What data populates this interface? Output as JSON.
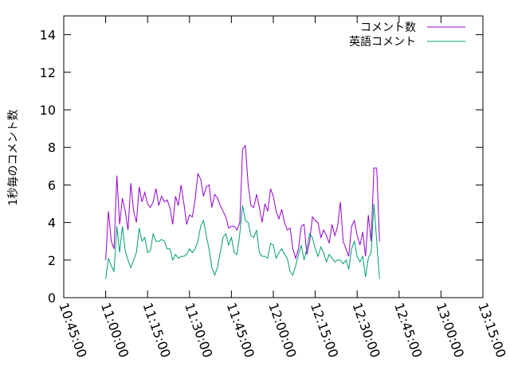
{
  "chart_data": {
    "type": "line",
    "ylabel": "1秒毎のコメント数",
    "ylim": [
      0,
      15
    ],
    "yticks": [
      0,
      2,
      4,
      6,
      8,
      10,
      12,
      14
    ],
    "ytick_labels": [
      "0",
      "2",
      "4",
      "6",
      "8",
      "10",
      "12",
      "14"
    ],
    "xlim": [
      "10:45:00",
      "13:15:00"
    ],
    "xticks": [
      "10:45:00",
      "11:00:00",
      "11:15:00",
      "11:30:00",
      "11:45:00",
      "12:00:00",
      "12:15:00",
      "12:30:00",
      "12:45:00",
      "13:00:00",
      "13:15:00"
    ],
    "legend_position": "top-right",
    "grid": false,
    "series": [
      {
        "name": "コメント数",
        "color": "#9400d3",
        "points": [
          [
            "11:00:00",
            2.0
          ],
          [
            "11:01:00",
            4.6
          ],
          [
            "11:02:00",
            3.0
          ],
          [
            "11:03:00",
            2.6
          ],
          [
            "11:04:00",
            6.5
          ],
          [
            "11:05:00",
            3.9
          ],
          [
            "11:06:00",
            5.3
          ],
          [
            "11:07:00",
            4.6
          ],
          [
            "11:08:00",
            3.6
          ],
          [
            "11:09:00",
            6.1
          ],
          [
            "11:10:00",
            4.6
          ],
          [
            "11:11:00",
            4.0
          ],
          [
            "11:12:00",
            5.9
          ],
          [
            "11:13:00",
            5.1
          ],
          [
            "11:14:00",
            5.6
          ],
          [
            "11:15:00",
            5.0
          ],
          [
            "11:16:00",
            4.8
          ],
          [
            "11:17:00",
            5.1
          ],
          [
            "11:18:00",
            5.8
          ],
          [
            "11:19:00",
            4.9
          ],
          [
            "11:20:00",
            5.4
          ],
          [
            "11:21:00",
            5.1
          ],
          [
            "11:22:00",
            5.2
          ],
          [
            "11:23:00",
            4.8
          ],
          [
            "11:24:00",
            3.9
          ],
          [
            "11:25:00",
            5.4
          ],
          [
            "11:26:00",
            4.9
          ],
          [
            "11:27:00",
            6.0
          ],
          [
            "11:28:00",
            5.0
          ],
          [
            "11:29:00",
            3.9
          ],
          [
            "11:30:00",
            4.4
          ],
          [
            "11:31:00",
            4.3
          ],
          [
            "11:32:00",
            5.2
          ],
          [
            "11:33:00",
            6.6
          ],
          [
            "11:34:00",
            6.3
          ],
          [
            "11:35:00",
            5.4
          ],
          [
            "11:36:00",
            5.9
          ],
          [
            "11:37:00",
            6.0
          ],
          [
            "11:38:00",
            4.8
          ],
          [
            "11:39:00",
            5.5
          ],
          [
            "11:40:00",
            5.3
          ],
          [
            "11:41:00",
            4.9
          ],
          [
            "11:42:00",
            4.6
          ],
          [
            "11:43:00",
            4.3
          ],
          [
            "11:44:00",
            3.7
          ],
          [
            "11:45:00",
            3.8
          ],
          [
            "11:46:00",
            3.8
          ],
          [
            "11:47:00",
            3.6
          ],
          [
            "11:48:00",
            4.0
          ],
          [
            "11:49:00",
            7.9
          ],
          [
            "11:50:00",
            8.1
          ],
          [
            "11:51:00",
            6.0
          ],
          [
            "11:52:00",
            4.9
          ],
          [
            "11:53:00",
            4.8
          ],
          [
            "11:54:00",
            5.5
          ],
          [
            "11:55:00",
            4.8
          ],
          [
            "11:56:00",
            4.0
          ],
          [
            "11:57:00",
            5.0
          ],
          [
            "11:58:00",
            4.6
          ],
          [
            "11:59:00",
            5.8
          ],
          [
            "12:00:00",
            5.4
          ],
          [
            "12:01:00",
            4.6
          ],
          [
            "12:02:00",
            4.2
          ],
          [
            "12:03:00",
            4.7
          ],
          [
            "12:04:00",
            4.0
          ],
          [
            "12:05:00",
            3.6
          ],
          [
            "12:06:00",
            3.7
          ],
          [
            "12:07:00",
            2.6
          ],
          [
            "12:08:00",
            2.1
          ],
          [
            "12:09:00",
            2.6
          ],
          [
            "12:10:00",
            3.8
          ],
          [
            "12:11:00",
            3.9
          ],
          [
            "12:12:00",
            2.3
          ],
          [
            "12:13:00",
            3.0
          ],
          [
            "12:14:00",
            4.3
          ],
          [
            "12:15:00",
            4.1
          ],
          [
            "12:16:00",
            4.0
          ],
          [
            "12:17:00",
            3.2
          ],
          [
            "12:18:00",
            3.6
          ],
          [
            "12:19:00",
            3.3
          ],
          [
            "12:20:00",
            2.9
          ],
          [
            "12:21:00",
            3.9
          ],
          [
            "12:22:00",
            3.3
          ],
          [
            "12:23:00",
            3.8
          ],
          [
            "12:24:00",
            5.1
          ],
          [
            "12:25:00",
            3.0
          ],
          [
            "12:26:00",
            2.6
          ],
          [
            "12:27:00",
            2.2
          ],
          [
            "12:28:00",
            3.8
          ],
          [
            "12:29:00",
            4.1
          ],
          [
            "12:30:00",
            3.3
          ],
          [
            "12:31:00",
            2.8
          ],
          [
            "12:32:00",
            3.5
          ],
          [
            "12:33:00",
            2.2
          ],
          [
            "12:34:00",
            4.4
          ],
          [
            "12:35:00",
            3.0
          ],
          [
            "12:36:00",
            6.9
          ],
          [
            "12:37:00",
            6.9
          ],
          [
            "12:38:00",
            3.0
          ]
        ]
      },
      {
        "name": "英語コメント",
        "color": "#009e73",
        "points": [
          [
            "11:00:00",
            1.0
          ],
          [
            "11:01:00",
            2.1
          ],
          [
            "11:02:00",
            1.7
          ],
          [
            "11:03:00",
            1.4
          ],
          [
            "11:04:00",
            3.8
          ],
          [
            "11:05:00",
            2.4
          ],
          [
            "11:06:00",
            3.8
          ],
          [
            "11:07:00",
            2.5
          ],
          [
            "11:08:00",
            2.0
          ],
          [
            "11:09:00",
            1.6
          ],
          [
            "11:10:00",
            2.0
          ],
          [
            "11:11:00",
            2.4
          ],
          [
            "11:12:00",
            3.7
          ],
          [
            "11:13:00",
            3.0
          ],
          [
            "11:14:00",
            3.2
          ],
          [
            "11:15:00",
            2.4
          ],
          [
            "11:16:00",
            2.5
          ],
          [
            "11:17:00",
            3.4
          ],
          [
            "11:18:00",
            3.0
          ],
          [
            "11:19:00",
            3.0
          ],
          [
            "11:20:00",
            3.1
          ],
          [
            "11:21:00",
            3.0
          ],
          [
            "11:22:00",
            2.6
          ],
          [
            "11:23:00",
            2.6
          ],
          [
            "11:24:00",
            2.0
          ],
          [
            "11:25:00",
            2.3
          ],
          [
            "11:26:00",
            2.1
          ],
          [
            "11:27:00",
            2.2
          ],
          [
            "11:28:00",
            2.2
          ],
          [
            "11:29:00",
            2.3
          ],
          [
            "11:30:00",
            2.6
          ],
          [
            "11:31:00",
            2.4
          ],
          [
            "11:32:00",
            2.6
          ],
          [
            "11:33:00",
            3.0
          ],
          [
            "11:34:00",
            3.8
          ],
          [
            "11:35:00",
            4.1
          ],
          [
            "11:36:00",
            3.3
          ],
          [
            "11:37:00",
            2.6
          ],
          [
            "11:38:00",
            1.6
          ],
          [
            "11:39:00",
            1.2
          ],
          [
            "11:40:00",
            1.6
          ],
          [
            "11:41:00",
            2.4
          ],
          [
            "11:42:00",
            3.2
          ],
          [
            "11:43:00",
            3.4
          ],
          [
            "11:44:00",
            2.8
          ],
          [
            "11:45:00",
            3.2
          ],
          [
            "11:46:00",
            2.4
          ],
          [
            "11:47:00",
            2.3
          ],
          [
            "11:48:00",
            3.4
          ],
          [
            "11:49:00",
            4.9
          ],
          [
            "11:50:00",
            4.1
          ],
          [
            "11:51:00",
            4.0
          ],
          [
            "11:52:00",
            3.3
          ],
          [
            "11:53:00",
            3.2
          ],
          [
            "11:54:00",
            3.6
          ],
          [
            "11:55:00",
            2.4
          ],
          [
            "11:56:00",
            2.2
          ],
          [
            "11:57:00",
            2.2
          ],
          [
            "11:58:00",
            2.1
          ],
          [
            "11:59:00",
            2.9
          ],
          [
            "12:00:00",
            2.8
          ],
          [
            "12:01:00",
            2.1
          ],
          [
            "12:02:00",
            2.4
          ],
          [
            "12:03:00",
            2.6
          ],
          [
            "12:04:00",
            2.3
          ],
          [
            "12:05:00",
            2.1
          ],
          [
            "12:06:00",
            1.4
          ],
          [
            "12:07:00",
            1.2
          ],
          [
            "12:08:00",
            1.7
          ],
          [
            "12:09:00",
            2.3
          ],
          [
            "12:10:00",
            2.8
          ],
          [
            "12:11:00",
            2.0
          ],
          [
            "12:12:00",
            2.6
          ],
          [
            "12:13:00",
            3.4
          ],
          [
            "12:14:00",
            3.2
          ],
          [
            "12:15:00",
            2.6
          ],
          [
            "12:16:00",
            2.2
          ],
          [
            "12:17:00",
            2.7
          ],
          [
            "12:18:00",
            2.4
          ],
          [
            "12:19:00",
            1.9
          ],
          [
            "12:20:00",
            2.3
          ],
          [
            "12:21:00",
            2.1
          ],
          [
            "12:22:00",
            1.9
          ],
          [
            "12:23:00",
            2.0
          ],
          [
            "12:24:00",
            2.0
          ],
          [
            "12:25:00",
            1.8
          ],
          [
            "12:26:00",
            2.0
          ],
          [
            "12:27:00",
            1.5
          ],
          [
            "12:28:00",
            2.6
          ],
          [
            "12:29:00",
            3.0
          ],
          [
            "12:30:00",
            2.2
          ],
          [
            "12:31:00",
            1.9
          ],
          [
            "12:32:00",
            2.2
          ],
          [
            "12:33:00",
            1.1
          ],
          [
            "12:34:00",
            2.1
          ],
          [
            "12:35:00",
            2.4
          ],
          [
            "12:36:00",
            5.0
          ],
          [
            "12:37:00",
            3.0
          ],
          [
            "12:38:00",
            1.0
          ]
        ]
      }
    ]
  }
}
